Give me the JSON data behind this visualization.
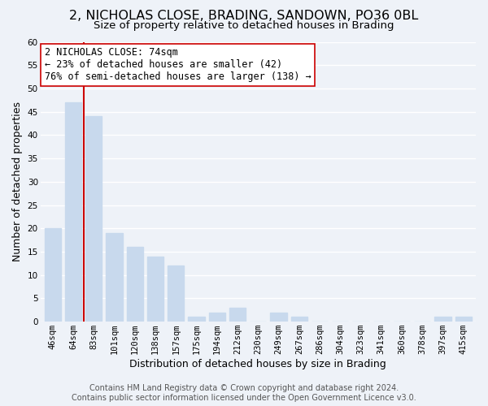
{
  "title": "2, NICHOLAS CLOSE, BRADING, SANDOWN, PO36 0BL",
  "subtitle": "Size of property relative to detached houses in Brading",
  "xlabel": "Distribution of detached houses by size in Brading",
  "ylabel": "Number of detached properties",
  "categories": [
    "46sqm",
    "64sqm",
    "83sqm",
    "101sqm",
    "120sqm",
    "138sqm",
    "157sqm",
    "175sqm",
    "194sqm",
    "212sqm",
    "230sqm",
    "249sqm",
    "267sqm",
    "286sqm",
    "304sqm",
    "323sqm",
    "341sqm",
    "360sqm",
    "378sqm",
    "397sqm",
    "415sqm"
  ],
  "values": [
    20,
    47,
    44,
    19,
    16,
    14,
    12,
    1,
    2,
    3,
    0,
    2,
    1,
    0,
    0,
    0,
    0,
    0,
    0,
    1,
    1
  ],
  "bar_color": "#c8d9ed",
  "bar_edgecolor": "#c8d9ed",
  "vline_x": 1.5,
  "vline_color": "#cc0000",
  "annotation_title": "2 NICHOLAS CLOSE: 74sqm",
  "annotation_line1": "← 23% of detached houses are smaller (42)",
  "annotation_line2": "76% of semi-detached houses are larger (138) →",
  "annotation_box_color": "#ffffff",
  "annotation_box_edgecolor": "#cc0000",
  "ylim": [
    0,
    60
  ],
  "yticks": [
    0,
    5,
    10,
    15,
    20,
    25,
    30,
    35,
    40,
    45,
    50,
    55,
    60
  ],
  "footer1": "Contains HM Land Registry data © Crown copyright and database right 2024.",
  "footer2": "Contains public sector information licensed under the Open Government Licence v3.0.",
  "background_color": "#eef2f8",
  "grid_color": "#ffffff",
  "title_fontsize": 11.5,
  "subtitle_fontsize": 9.5,
  "axis_label_fontsize": 9,
  "tick_fontsize": 7.5,
  "annotation_fontsize": 8.5,
  "footer_fontsize": 7
}
